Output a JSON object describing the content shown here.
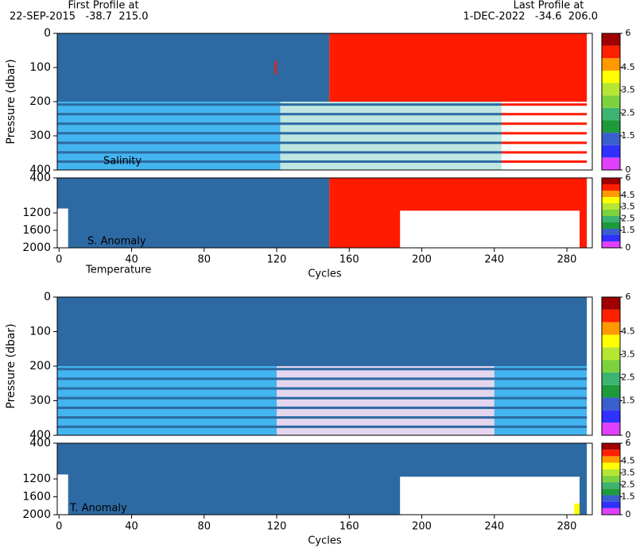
{
  "header": {
    "first_label": "First Profile at",
    "first_value": "22-SEP-2015   -38.7  215.0",
    "last_label": "Last Profile at",
    "last_value": "1-DEC-2022   -34.6  206.0"
  },
  "chart_data": [
    {
      "type": "heatmap",
      "label": "Salinity",
      "ylabel": "Pressure (dbar)",
      "xlim": [
        -1,
        294
      ],
      "ylim": [
        0,
        400
      ],
      "yticks": [
        0,
        100,
        200,
        300,
        400
      ],
      "blocks": [
        {
          "x": [
            -1,
            149
          ],
          "y": [
            0,
            200
          ],
          "color": "#2d6aa3"
        },
        {
          "x": [
            149,
            291
          ],
          "y": [
            0,
            200
          ],
          "color": "#ff1a00"
        },
        {
          "x": [
            119,
            120
          ],
          "y": [
            80,
            120
          ],
          "color": "#ff1a00"
        },
        {
          "x": [
            -1,
            122
          ],
          "y": [
            200,
            400
          ],
          "color": "#43b5f0"
        },
        {
          "x": [
            122,
            244
          ],
          "y": [
            200,
            400
          ],
          "color": "#bfe6e0"
        },
        {
          "x": [
            -1,
            244
          ],
          "y": [
            205,
            212
          ],
          "color": "#2d6aa3"
        },
        {
          "x": [
            -1,
            244
          ],
          "y": [
            233,
            240
          ],
          "color": "#2d6aa3"
        },
        {
          "x": [
            -1,
            244
          ],
          "y": [
            261,
            268
          ],
          "color": "#2d6aa3"
        },
        {
          "x": [
            -1,
            244
          ],
          "y": [
            289,
            296
          ],
          "color": "#2d6aa3"
        },
        {
          "x": [
            -1,
            244
          ],
          "y": [
            317,
            324
          ],
          "color": "#2d6aa3"
        },
        {
          "x": [
            -1,
            244
          ],
          "y": [
            345,
            352
          ],
          "color": "#2d6aa3"
        },
        {
          "x": [
            -1,
            244
          ],
          "y": [
            372,
            379
          ],
          "color": "#2d6aa3"
        },
        {
          "x": [
            244,
            291
          ],
          "y": [
            205,
            212
          ],
          "color": "#ff1a00"
        },
        {
          "x": [
            244,
            291
          ],
          "y": [
            233,
            240
          ],
          "color": "#ff1a00"
        },
        {
          "x": [
            244,
            291
          ],
          "y": [
            261,
            268
          ],
          "color": "#ff1a00"
        },
        {
          "x": [
            244,
            291
          ],
          "y": [
            289,
            296
          ],
          "color": "#ff1a00"
        },
        {
          "x": [
            244,
            291
          ],
          "y": [
            317,
            324
          ],
          "color": "#ff1a00"
        },
        {
          "x": [
            244,
            291
          ],
          "y": [
            345,
            352
          ],
          "color": "#ff1a00"
        },
        {
          "x": [
            244,
            291
          ],
          "y": [
            372,
            379
          ],
          "color": "#ff1a00"
        }
      ],
      "colorbar": {
        "lim": [
          0,
          6
        ],
        "ticks": [
          6,
          4.5,
          3.5,
          2.5,
          1.5,
          0
        ],
        "colors": [
          "#e040fb",
          "#3030ff",
          "#3a5fcd",
          "#1e9a3a",
          "#3cb371",
          "#7cd23c",
          "#b4e632",
          "#ffff00",
          "#ff9900",
          "#ff2000",
          "#a00000"
        ]
      }
    },
    {
      "type": "heatmap",
      "label": "S. Anomaly",
      "xlabel": "Cycles",
      "xlim": [
        -1,
        294
      ],
      "ylim": [
        400,
        2000
      ],
      "yticks": [
        400,
        1200,
        1600,
        2000
      ],
      "xticks": [
        0,
        40,
        80,
        120,
        160,
        200,
        240,
        280
      ],
      "blocks": [
        {
          "x": [
            -1,
            149
          ],
          "y": [
            400,
            2000
          ],
          "color": "#2d6aa3"
        },
        {
          "x": [
            149,
            291
          ],
          "y": [
            400,
            2000
          ],
          "color": "#ff1a00"
        },
        {
          "x": [
            188,
            287
          ],
          "y": [
            1150,
            2000
          ],
          "color": "#ffffff"
        },
        {
          "x": [
            -1,
            5
          ],
          "y": [
            1100,
            2000
          ],
          "color": "#ffffff"
        }
      ],
      "colorbar": {
        "lim": [
          0,
          6
        ],
        "ticks": [
          6,
          4.5,
          3.5,
          2.5,
          1.5,
          0
        ],
        "colors": [
          "#e040fb",
          "#3030ff",
          "#3a5fcd",
          "#1e9a3a",
          "#3cb371",
          "#7cd23c",
          "#b4e632",
          "#ffff00",
          "#ff9900",
          "#ff2000",
          "#a00000"
        ]
      }
    },
    {
      "type": "heatmap",
      "label": "Temperature",
      "ylabel": "Pressure (dbar)",
      "xlim": [
        -1,
        294
      ],
      "ylim": [
        0,
        400
      ],
      "yticks": [
        0,
        100,
        200,
        300,
        400
      ],
      "blocks": [
        {
          "x": [
            -1,
            291
          ],
          "y": [
            0,
            200
          ],
          "color": "#2d6aa3"
        },
        {
          "x": [
            -1,
            291
          ],
          "y": [
            200,
            400
          ],
          "color": "#43b5f0"
        },
        {
          "x": [
            120,
            240
          ],
          "y": [
            200,
            400
          ],
          "color": "#e4d6ee"
        },
        {
          "x": [
            -1,
            291
          ],
          "y": [
            205,
            212
          ],
          "color": "#2d6aa3"
        },
        {
          "x": [
            -1,
            291
          ],
          "y": [
            233,
            240
          ],
          "color": "#2d6aa3"
        },
        {
          "x": [
            -1,
            291
          ],
          "y": [
            261,
            268
          ],
          "color": "#2d6aa3"
        },
        {
          "x": [
            -1,
            291
          ],
          "y": [
            289,
            296
          ],
          "color": "#2d6aa3"
        },
        {
          "x": [
            -1,
            291
          ],
          "y": [
            317,
            324
          ],
          "color": "#2d6aa3"
        },
        {
          "x": [
            -1,
            291
          ],
          "y": [
            345,
            352
          ],
          "color": "#2d6aa3"
        },
        {
          "x": [
            -1,
            291
          ],
          "y": [
            372,
            379
          ],
          "color": "#2d6aa3"
        }
      ],
      "colorbar": {
        "lim": [
          0,
          6
        ],
        "ticks": [
          6,
          4.5,
          3.5,
          2.5,
          1.5,
          0
        ],
        "colors": [
          "#e040fb",
          "#3030ff",
          "#3a5fcd",
          "#1e9a3a",
          "#3cb371",
          "#7cd23c",
          "#b4e632",
          "#ffff00",
          "#ff9900",
          "#ff2000",
          "#a00000"
        ]
      }
    },
    {
      "type": "heatmap",
      "label": "T. Anomaly",
      "xlabel": "Cycles",
      "xlim": [
        -1,
        294
      ],
      "ylim": [
        400,
        2000
      ],
      "yticks": [
        400,
        1200,
        1600,
        2000
      ],
      "xticks": [
        0,
        40,
        80,
        120,
        160,
        200,
        240,
        280
      ],
      "blocks": [
        {
          "x": [
            -1,
            291
          ],
          "y": [
            400,
            2000
          ],
          "color": "#2d6aa3"
        },
        {
          "x": [
            188,
            287
          ],
          "y": [
            1150,
            2000
          ],
          "color": "#ffffff"
        },
        {
          "x": [
            -1,
            5
          ],
          "y": [
            1100,
            2000
          ],
          "color": "#ffffff"
        },
        {
          "x": [
            284,
            287
          ],
          "y": [
            1750,
            2000
          ],
          "color": "#ffff00"
        }
      ],
      "colorbar": {
        "lim": [
          0,
          6
        ],
        "ticks": [
          6,
          4.5,
          3.5,
          2.5,
          1.5,
          0
        ],
        "colors": [
          "#e040fb",
          "#3030ff",
          "#3a5fcd",
          "#1e9a3a",
          "#3cb371",
          "#7cd23c",
          "#b4e632",
          "#ffff00",
          "#ff9900",
          "#ff2000",
          "#a00000"
        ]
      }
    }
  ]
}
